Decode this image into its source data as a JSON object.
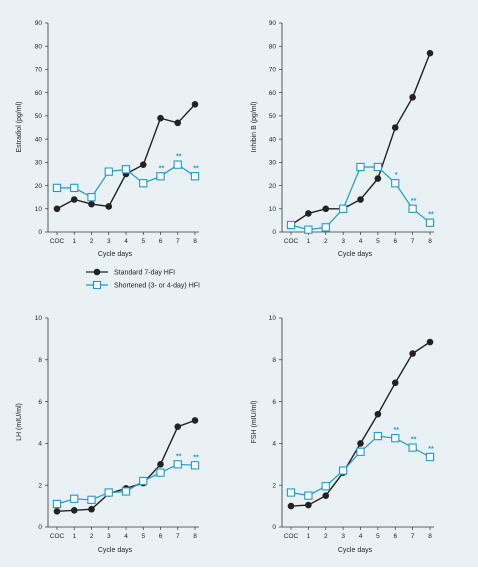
{
  "colors": {
    "background": "#e9f1f4",
    "standard": "#222222",
    "shortened": "#1a9bd7"
  },
  "legend": {
    "standard_label": "Standard 7-day HFI",
    "shortened_label": "Shortened (3- or 4-day) HFI"
  },
  "chart_data": [
    {
      "type": "line",
      "title": "",
      "xlabel": "Cycle days",
      "ylabel": "Estradiol (pg/ml)",
      "categories": [
        "COC",
        "1",
        "2",
        "3",
        "4",
        "5",
        "6",
        "7",
        "8"
      ],
      "yticks": [
        0,
        10,
        20,
        30,
        40,
        50,
        60,
        70,
        80,
        90
      ],
      "ylim": [
        0,
        90
      ],
      "series": [
        {
          "name": "Standard 7-day HFI",
          "values": [
            10,
            14,
            12,
            11,
            25,
            29,
            49,
            47,
            55
          ]
        },
        {
          "name": "Shortened (3- or 4-day) HFI",
          "values": [
            19,
            19,
            15,
            26,
            27,
            21,
            24,
            29,
            24
          ]
        }
      ],
      "annotations": [
        {
          "series": 1,
          "index": 6,
          "text": "**"
        },
        {
          "series": 1,
          "index": 7,
          "text": "**"
        },
        {
          "series": 1,
          "index": 8,
          "text": "**"
        }
      ]
    },
    {
      "type": "line",
      "title": "",
      "xlabel": "Cycle days",
      "ylabel": "Inhibin B (pg/ml)",
      "categories": [
        "COC",
        "1",
        "2",
        "3",
        "4",
        "5",
        "6",
        "7",
        "8"
      ],
      "yticks": [
        0,
        10,
        20,
        30,
        40,
        50,
        60,
        70,
        80,
        90
      ],
      "ylim": [
        0,
        90
      ],
      "series": [
        {
          "name": "Standard 7-day HFI",
          "values": [
            3,
            8,
            10,
            10,
            14,
            23,
            45,
            58,
            77
          ]
        },
        {
          "name": "Shortened (3- or 4-day) HFI",
          "values": [
            3,
            1,
            2,
            10,
            28,
            28,
            21,
            10,
            4
          ]
        }
      ],
      "annotations": [
        {
          "series": 1,
          "index": 6,
          "text": "*"
        },
        {
          "series": 1,
          "index": 7,
          "text": "**"
        },
        {
          "series": 1,
          "index": 8,
          "text": "**"
        }
      ]
    },
    {
      "type": "line",
      "title": "",
      "xlabel": "Cycle days",
      "ylabel": "LH (mIU/ml)",
      "categories": [
        "COC",
        "1",
        "2",
        "3",
        "4",
        "5",
        "6",
        "7",
        "8"
      ],
      "yticks": [
        0,
        2,
        4,
        6,
        8,
        10
      ],
      "ylim": [
        0,
        10
      ],
      "series": [
        {
          "name": "Standard 7-day HFI",
          "values": [
            0.75,
            0.8,
            0.85,
            1.6,
            1.85,
            2.1,
            3.0,
            4.8,
            5.1
          ]
        },
        {
          "name": "Shortened (3- or 4-day) HFI",
          "values": [
            1.1,
            1.35,
            1.3,
            1.65,
            1.7,
            2.2,
            2.6,
            3.0,
            2.95
          ]
        }
      ],
      "annotations": [
        {
          "series": 1,
          "index": 7,
          "text": "**"
        },
        {
          "series": 1,
          "index": 8,
          "text": "**"
        }
      ]
    },
    {
      "type": "line",
      "title": "",
      "xlabel": "Cycle days",
      "ylabel": "FSH (mIU/ml)",
      "categories": [
        "COC",
        "1",
        "2",
        "3",
        "4",
        "5",
        "6",
        "7",
        "8"
      ],
      "yticks": [
        0,
        2,
        4,
        6,
        8,
        10
      ],
      "ylim": [
        0,
        10
      ],
      "series": [
        {
          "name": "Standard 7-day HFI",
          "values": [
            1.0,
            1.05,
            1.5,
            2.6,
            4.0,
            5.4,
            6.9,
            8.3,
            8.85
          ]
        },
        {
          "name": "Shortened (3- or 4-day) HFI",
          "values": [
            1.65,
            1.5,
            1.95,
            2.7,
            3.6,
            4.35,
            4.25,
            3.8,
            3.35
          ]
        }
      ],
      "annotations": [
        {
          "series": 1,
          "index": 6,
          "text": "**"
        },
        {
          "series": 1,
          "index": 7,
          "text": "**"
        },
        {
          "series": 1,
          "index": 8,
          "text": "**"
        }
      ]
    }
  ]
}
